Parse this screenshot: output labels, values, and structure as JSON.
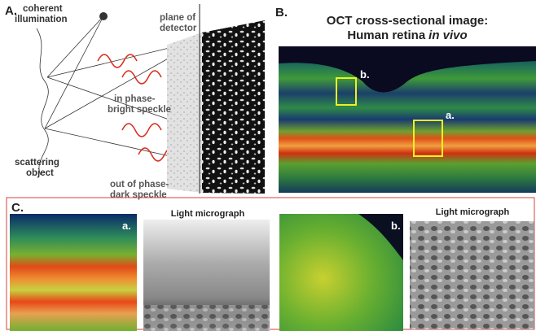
{
  "panel_a": {
    "label": "A.",
    "illumination": [
      "coherent",
      "illumination"
    ],
    "detector": [
      "plane of",
      "detector"
    ],
    "bright": [
      "in phase-",
      "bright speckle"
    ],
    "object": [
      "scattering",
      "object"
    ],
    "dark": [
      "out of phase-",
      "dark speckle"
    ]
  },
  "panel_b": {
    "label": "B.",
    "title": [
      "OCT cross-sectional image:",
      "Human retina"
    ],
    "title_italic": "in vivo",
    "box_b": "b.",
    "box_a": "a."
  },
  "panel_c": {
    "label": "C.",
    "left_tag": "a.",
    "left_caption": "Light micrograph",
    "right_tag": "b.",
    "right_caption": "Light micrograph"
  }
}
